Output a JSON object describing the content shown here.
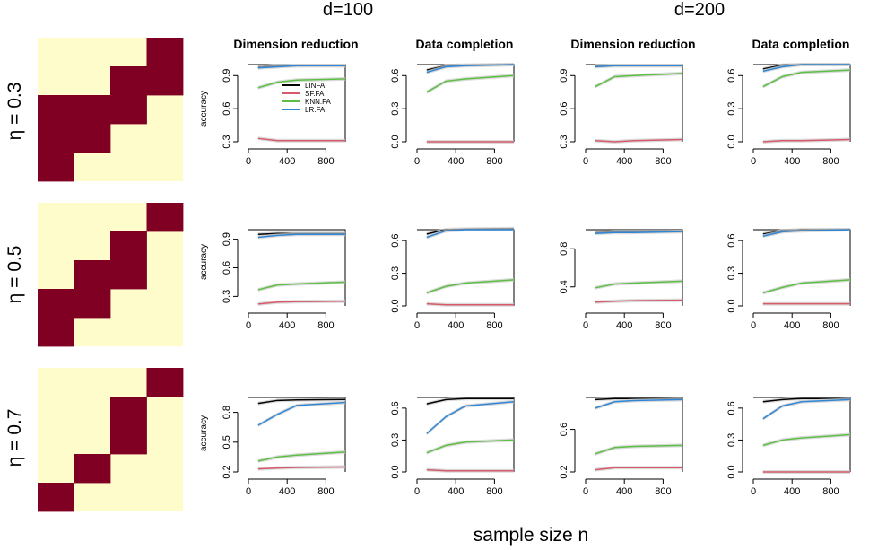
{
  "header": {
    "d_labels": [
      "d=100",
      "d=200"
    ],
    "column_titles": [
      "Dimension reduction",
      "Data completion",
      "Dimension reduction",
      "Data completion"
    ],
    "row_labels": [
      "η = 0.3",
      "η = 0.5",
      "η = 0.7"
    ],
    "x_axis_label": "sample size n",
    "y_axis_label": "accuracy"
  },
  "legend": [
    {
      "name": "LINFA",
      "color": "#000000"
    },
    {
      "name": "SF.FA",
      "color": "#d65a6a"
    },
    {
      "name": "KNN.FA",
      "color": "#5cbf43"
    },
    {
      "name": "LR.FA",
      "color": "#2f86d4"
    }
  ],
  "colors": {
    "heatmap_fill": "#800024",
    "heatmap_bg": "#fffccc",
    "band": "#cccccc"
  },
  "heatmaps": [
    {
      "eta": 0.3,
      "cells": [
        [
          0,
          0,
          0,
          1
        ],
        [
          0,
          0,
          1,
          1
        ],
        [
          1,
          1,
          1,
          0
        ],
        [
          1,
          1,
          0,
          0
        ],
        [
          1,
          0,
          0,
          0
        ]
      ]
    },
    {
      "eta": 0.5,
      "cells": [
        [
          0,
          0,
          0,
          1
        ],
        [
          0,
          0,
          1,
          0
        ],
        [
          0,
          1,
          1,
          0
        ],
        [
          1,
          1,
          0,
          0
        ],
        [
          1,
          0,
          0,
          0
        ]
      ]
    },
    {
      "eta": 0.7,
      "cells": [
        [
          0,
          0,
          0,
          1
        ],
        [
          0,
          0,
          1,
          0
        ],
        [
          0,
          0,
          1,
          0
        ],
        [
          0,
          1,
          0,
          0
        ],
        [
          1,
          0,
          0,
          0
        ]
      ]
    }
  ],
  "chart_data": [
    {
      "type": "line",
      "row": 0,
      "col": 0,
      "title": "Dimension reduction",
      "xlabel": "",
      "ylabel": "accuracy",
      "x": [
        100,
        300,
        500,
        1000
      ],
      "xlim": [
        0,
        1000
      ],
      "ylim": [
        0.3,
        1.0
      ],
      "yticks": [
        0.3,
        0.6,
        0.9
      ],
      "xticks": [
        0,
        400,
        800
      ],
      "series": [
        {
          "name": "LINFA",
          "values": [
            0.98,
            0.99,
            0.99,
            0.99
          ]
        },
        {
          "name": "SF.FA",
          "values": [
            0.33,
            0.31,
            0.31,
            0.31
          ]
        },
        {
          "name": "KNN.FA",
          "values": [
            0.79,
            0.84,
            0.86,
            0.87
          ]
        },
        {
          "name": "LR.FA",
          "values": [
            0.97,
            0.98,
            0.99,
            0.99
          ]
        }
      ]
    },
    {
      "type": "line",
      "row": 0,
      "col": 1,
      "title": "Data completion",
      "xlabel": "",
      "ylabel": "",
      "x": [
        100,
        300,
        500,
        1000
      ],
      "xlim": [
        0,
        1000
      ],
      "ylim": [
        0.0,
        0.7
      ],
      "yticks": [
        0.0,
        0.3,
        0.6
      ],
      "xticks": [
        0,
        400,
        800
      ],
      "series": [
        {
          "name": "LINFA",
          "values": [
            0.65,
            0.69,
            0.695,
            0.7
          ]
        },
        {
          "name": "SF.FA",
          "values": [
            0.0,
            0.0,
            0.0,
            0.0
          ]
        },
        {
          "name": "KNN.FA",
          "values": [
            0.45,
            0.55,
            0.57,
            0.6
          ]
        },
        {
          "name": "LR.FA",
          "values": [
            0.63,
            0.68,
            0.69,
            0.7
          ]
        }
      ]
    },
    {
      "type": "line",
      "row": 0,
      "col": 2,
      "title": "Dimension reduction",
      "xlabel": "",
      "ylabel": "",
      "x": [
        100,
        300,
        500,
        1000
      ],
      "xlim": [
        0,
        1000
      ],
      "ylim": [
        0.3,
        1.0
      ],
      "yticks": [
        0.3,
        0.6,
        0.9
      ],
      "xticks": [
        0,
        400,
        800
      ],
      "series": [
        {
          "name": "LINFA",
          "values": [
            0.99,
            0.99,
            0.99,
            0.99
          ]
        },
        {
          "name": "SF.FA",
          "values": [
            0.31,
            0.3,
            0.31,
            0.32
          ]
        },
        {
          "name": "KNN.FA",
          "values": [
            0.8,
            0.89,
            0.9,
            0.92
          ]
        },
        {
          "name": "LR.FA",
          "values": [
            0.98,
            0.99,
            0.99,
            0.99
          ]
        }
      ]
    },
    {
      "type": "line",
      "row": 0,
      "col": 3,
      "title": "Data completion",
      "xlabel": "",
      "ylabel": "",
      "x": [
        100,
        300,
        500,
        1000
      ],
      "xlim": [
        0,
        1000
      ],
      "ylim": [
        0.0,
        0.7
      ],
      "yticks": [
        0.0,
        0.3,
        0.6
      ],
      "xticks": [
        0,
        400,
        800
      ],
      "series": [
        {
          "name": "LINFA",
          "values": [
            0.66,
            0.695,
            0.7,
            0.7
          ]
        },
        {
          "name": "SF.FA",
          "values": [
            0.0,
            0.01,
            0.01,
            0.02
          ]
        },
        {
          "name": "KNN.FA",
          "values": [
            0.5,
            0.59,
            0.63,
            0.65
          ]
        },
        {
          "name": "LR.FA",
          "values": [
            0.64,
            0.68,
            0.7,
            0.7
          ]
        }
      ]
    },
    {
      "type": "line",
      "row": 1,
      "col": 0,
      "title": "",
      "xlabel": "",
      "ylabel": "accuracy",
      "x": [
        100,
        300,
        500,
        1000
      ],
      "xlim": [
        0,
        1000
      ],
      "ylim": [
        0.2,
        1.0
      ],
      "yticks": [
        0.3,
        0.6,
        0.9
      ],
      "xticks": [
        0,
        400,
        800
      ],
      "series": [
        {
          "name": "LINFA",
          "values": [
            0.95,
            0.96,
            0.96,
            0.96
          ]
        },
        {
          "name": "SF.FA",
          "values": [
            0.22,
            0.24,
            0.245,
            0.25
          ]
        },
        {
          "name": "KNN.FA",
          "values": [
            0.37,
            0.42,
            0.43,
            0.45
          ]
        },
        {
          "name": "LR.FA",
          "values": [
            0.92,
            0.94,
            0.95,
            0.95
          ]
        }
      ]
    },
    {
      "type": "line",
      "row": 1,
      "col": 1,
      "title": "",
      "xlabel": "",
      "ylabel": "",
      "x": [
        100,
        300,
        500,
        1000
      ],
      "xlim": [
        0,
        1000
      ],
      "ylim": [
        0.0,
        0.7
      ],
      "yticks": [
        0.0,
        0.3,
        0.6
      ],
      "xticks": [
        0,
        400,
        800
      ],
      "series": [
        {
          "name": "LINFA",
          "values": [
            0.66,
            0.7,
            0.705,
            0.71
          ]
        },
        {
          "name": "SF.FA",
          "values": [
            0.02,
            0.01,
            0.01,
            0.01
          ]
        },
        {
          "name": "KNN.FA",
          "values": [
            0.12,
            0.18,
            0.21,
            0.24
          ]
        },
        {
          "name": "LR.FA",
          "values": [
            0.63,
            0.69,
            0.7,
            0.7
          ]
        }
      ]
    },
    {
      "type": "line",
      "row": 1,
      "col": 2,
      "title": "",
      "xlabel": "",
      "ylabel": "",
      "x": [
        100,
        300,
        500,
        1000
      ],
      "xlim": [
        0,
        1000
      ],
      "ylim": [
        0.2,
        1.0
      ],
      "yticks": [
        0.4,
        0.8
      ],
      "xticks": [
        0,
        400,
        800
      ],
      "series": [
        {
          "name": "LINFA",
          "values": [
            0.97,
            0.98,
            0.98,
            0.98
          ]
        },
        {
          "name": "SF.FA",
          "values": [
            0.24,
            0.25,
            0.255,
            0.26
          ]
        },
        {
          "name": "KNN.FA",
          "values": [
            0.39,
            0.43,
            0.44,
            0.46
          ]
        },
        {
          "name": "LR.FA",
          "values": [
            0.96,
            0.97,
            0.97,
            0.98
          ]
        }
      ]
    },
    {
      "type": "line",
      "row": 1,
      "col": 3,
      "title": "",
      "xlabel": "",
      "ylabel": "",
      "x": [
        100,
        300,
        500,
        1000
      ],
      "xlim": [
        0,
        1000
      ],
      "ylim": [
        0.0,
        0.7
      ],
      "yticks": [
        0.0,
        0.3,
        0.6
      ],
      "xticks": [
        0,
        400,
        800
      ],
      "series": [
        {
          "name": "LINFA",
          "values": [
            0.66,
            0.69,
            0.7,
            0.7
          ]
        },
        {
          "name": "SF.FA",
          "values": [
            0.02,
            0.02,
            0.02,
            0.02
          ]
        },
        {
          "name": "KNN.FA",
          "values": [
            0.12,
            0.17,
            0.21,
            0.24
          ]
        },
        {
          "name": "LR.FA",
          "values": [
            0.64,
            0.68,
            0.69,
            0.7
          ]
        }
      ]
    },
    {
      "type": "line",
      "row": 2,
      "col": 0,
      "title": "",
      "xlabel": "",
      "ylabel": "accuracy",
      "x": [
        100,
        300,
        500,
        1000
      ],
      "xlim": [
        0,
        1000
      ],
      "ylim": [
        0.2,
        0.95
      ],
      "yticks": [
        0.2,
        0.5,
        0.8
      ],
      "xticks": [
        0,
        400,
        800
      ],
      "series": [
        {
          "name": "LINFA",
          "values": [
            0.89,
            0.92,
            0.925,
            0.93
          ]
        },
        {
          "name": "SF.FA",
          "values": [
            0.23,
            0.24,
            0.245,
            0.25
          ]
        },
        {
          "name": "KNN.FA",
          "values": [
            0.31,
            0.35,
            0.37,
            0.4
          ]
        },
        {
          "name": "LR.FA",
          "values": [
            0.67,
            0.78,
            0.87,
            0.9
          ]
        }
      ]
    },
    {
      "type": "line",
      "row": 2,
      "col": 1,
      "title": "",
      "xlabel": "",
      "ylabel": "",
      "x": [
        100,
        300,
        500,
        1000
      ],
      "xlim": [
        0,
        1000
      ],
      "ylim": [
        0.0,
        0.7
      ],
      "yticks": [
        0.0,
        0.3,
        0.6
      ],
      "xticks": [
        0,
        400,
        800
      ],
      "series": [
        {
          "name": "LINFA",
          "values": [
            0.64,
            0.68,
            0.69,
            0.69
          ]
        },
        {
          "name": "SF.FA",
          "values": [
            0.02,
            0.01,
            0.01,
            0.01
          ]
        },
        {
          "name": "KNN.FA",
          "values": [
            0.18,
            0.25,
            0.28,
            0.3
          ]
        },
        {
          "name": "LR.FA",
          "values": [
            0.36,
            0.52,
            0.62,
            0.66
          ]
        }
      ]
    },
    {
      "type": "line",
      "row": 2,
      "col": 2,
      "title": "",
      "xlabel": "",
      "ylabel": "",
      "x": [
        100,
        300,
        500,
        1000
      ],
      "xlim": [
        0,
        1000
      ],
      "ylim": [
        0.2,
        0.9
      ],
      "yticks": [
        0.2,
        0.6
      ],
      "xticks": [
        0,
        400,
        800
      ],
      "series": [
        {
          "name": "LINFA",
          "values": [
            0.88,
            0.89,
            0.89,
            0.89
          ]
        },
        {
          "name": "SF.FA",
          "values": [
            0.22,
            0.24,
            0.24,
            0.24
          ]
        },
        {
          "name": "KNN.FA",
          "values": [
            0.37,
            0.43,
            0.44,
            0.45
          ]
        },
        {
          "name": "LR.FA",
          "values": [
            0.8,
            0.86,
            0.87,
            0.88
          ]
        }
      ]
    },
    {
      "type": "line",
      "row": 2,
      "col": 3,
      "title": "",
      "xlabel": "",
      "ylabel": "",
      "x": [
        100,
        300,
        500,
        1000
      ],
      "xlim": [
        0,
        1000
      ],
      "ylim": [
        0.0,
        0.7
      ],
      "yticks": [
        0.0,
        0.3,
        0.6
      ],
      "xticks": [
        0,
        400,
        800
      ],
      "series": [
        {
          "name": "LINFA",
          "values": [
            0.66,
            0.68,
            0.69,
            0.69
          ]
        },
        {
          "name": "SF.FA",
          "values": [
            0.0,
            0.0,
            0.0,
            0.0
          ]
        },
        {
          "name": "KNN.FA",
          "values": [
            0.25,
            0.3,
            0.32,
            0.35
          ]
        },
        {
          "name": "LR.FA",
          "values": [
            0.5,
            0.62,
            0.66,
            0.68
          ]
        }
      ]
    }
  ]
}
